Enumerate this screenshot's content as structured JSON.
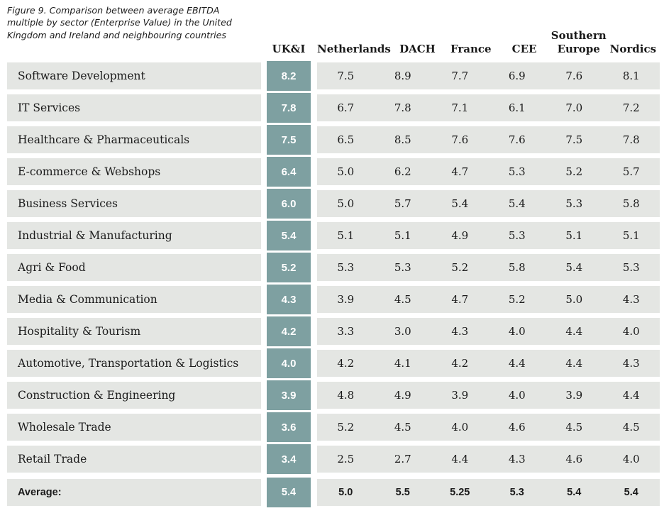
{
  "caption": "Figure 9. Comparison between average EBITDA multiple by sector (Enterprise Value) in the United Kingdom and Ireland and neighbouring countries",
  "colors": {
    "accent_teal": "#7EA0A1",
    "row_band_gray": "#E4E6E3",
    "text": "#1A1A1A",
    "highlight_text": "#FFFFFF"
  },
  "chart_data": {
    "type": "table",
    "title": "Figure 9. Comparison between average EBITDA multiple by sector (Enterprise Value) in the United Kingdom and Ireland and neighbouring countries",
    "columns": [
      "UK&I",
      "Netherlands",
      "DACH",
      "France",
      "CEE",
      "Southern Europe",
      "Nordics"
    ],
    "highlighted_column": "UK&I",
    "rows": [
      {
        "sector": "Software Development",
        "values": [
          "8.2",
          "7.5",
          "8.9",
          "7.7",
          "6.9",
          "7.6",
          "8.1"
        ]
      },
      {
        "sector": "IT Services",
        "values": [
          "7.8",
          "6.7",
          "7.8",
          "7.1",
          "6.1",
          "7.0",
          "7.2"
        ]
      },
      {
        "sector": "Healthcare & Pharmaceuticals",
        "values": [
          "7.5",
          "6.5",
          "8.5",
          "7.6",
          "7.6",
          "7.5",
          "7.8"
        ]
      },
      {
        "sector": "E-commerce & Webshops",
        "values": [
          "6.4",
          "5.0",
          "6.2",
          "4.7",
          "5.3",
          "5.2",
          "5.7"
        ]
      },
      {
        "sector": "Business Services",
        "values": [
          "6.0",
          "5.0",
          "5.7",
          "5.4",
          "5.4",
          "5.3",
          "5.8"
        ]
      },
      {
        "sector": "Industrial & Manufacturing",
        "values": [
          "5.4",
          "5.1",
          "5.1",
          "4.9",
          "5.3",
          "5.1",
          "5.1"
        ]
      },
      {
        "sector": "Agri & Food",
        "values": [
          "5.2",
          "5.3",
          "5.3",
          "5.2",
          "5.8",
          "5.4",
          "5.3"
        ]
      },
      {
        "sector": "Media & Communication",
        "values": [
          "4.3",
          "3.9",
          "4.5",
          "4.7",
          "5.2",
          "5.0",
          "4.3"
        ]
      },
      {
        "sector": "Hospitality & Tourism",
        "values": [
          "4.2",
          "3.3",
          "3.0",
          "4.3",
          "4.0",
          "4.4",
          "4.0"
        ]
      },
      {
        "sector": "Automotive, Transportation & Logistics",
        "values": [
          "4.0",
          "4.2",
          "4.1",
          "4.2",
          "4.4",
          "4.4",
          "4.3"
        ]
      },
      {
        "sector": "Construction & Engineering",
        "values": [
          "3.9",
          "4.8",
          "4.9",
          "3.9",
          "4.0",
          "3.9",
          "4.4"
        ]
      },
      {
        "sector": "Wholesale Trade",
        "values": [
          "3.6",
          "5.2",
          "4.5",
          "4.0",
          "4.6",
          "4.5",
          "4.5"
        ]
      },
      {
        "sector": "Retail Trade",
        "values": [
          "3.4",
          "2.5",
          "2.7",
          "4.4",
          "4.3",
          "4.6",
          "4.0"
        ]
      }
    ],
    "average": {
      "label": "Average:",
      "values": [
        "5.4",
        "5.0",
        "5.5",
        "5.25",
        "5.3",
        "5.4",
        "5.4"
      ]
    }
  }
}
